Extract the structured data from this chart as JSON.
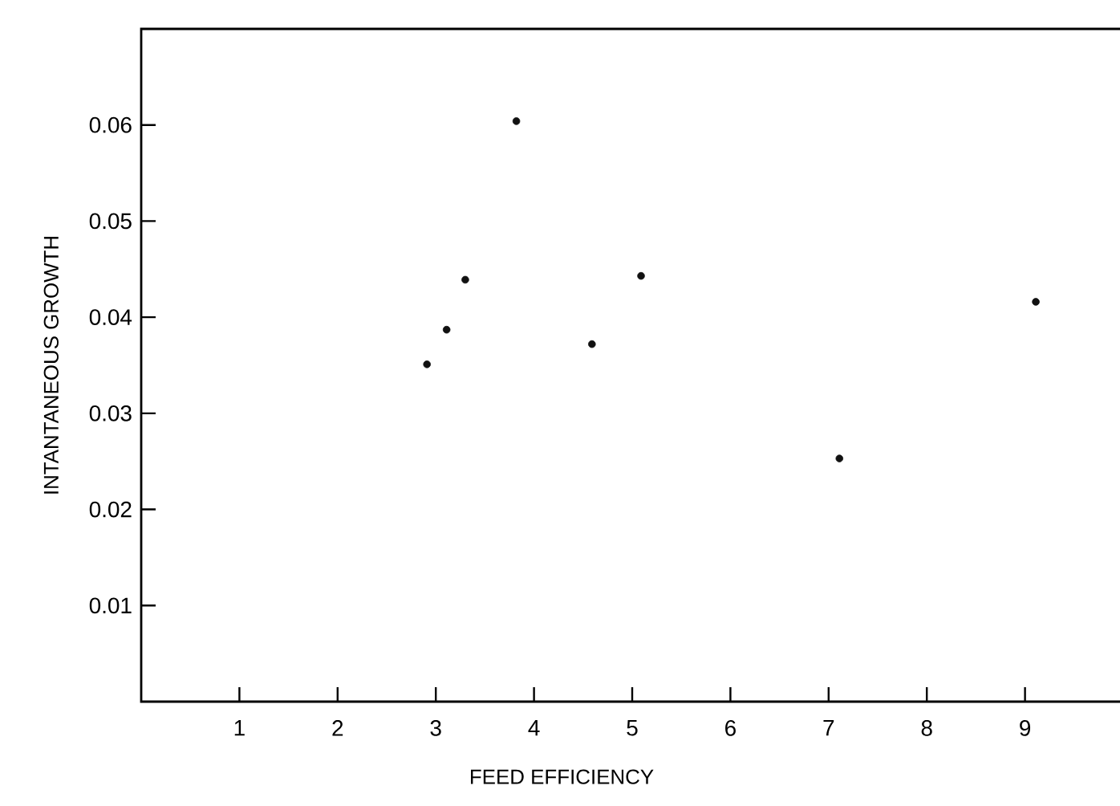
{
  "chart_data": {
    "type": "scatter",
    "xlabel": "FEED EFFICIENCY",
    "ylabel": "INTANTANEOUS GROWTH",
    "x": [
      2.91,
      3.11,
      3.3,
      3.82,
      4.59,
      5.09,
      7.11,
      9.11
    ],
    "values": [
      0.0351,
      0.0387,
      0.0439,
      0.0604,
      0.0372,
      0.0443,
      0.0253,
      0.0416
    ],
    "color": "#111111",
    "xlim": [
      0,
      10
    ],
    "ylim": [
      0,
      0.07
    ],
    "xticks": [
      1,
      2,
      3,
      4,
      5,
      6,
      7,
      8,
      9
    ],
    "yticks": [
      0.01,
      0.02,
      0.03,
      0.04,
      0.05,
      0.06
    ]
  }
}
